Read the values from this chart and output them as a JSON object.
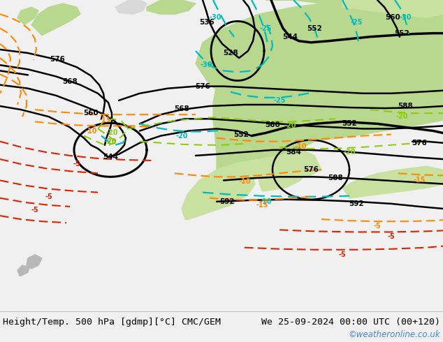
{
  "title_left": "Height/Temp. 500 hPa [gdmp][°C] CMC/GEM",
  "title_right": "We 25-09-2024 00:00 UTC (00+120)",
  "watermark": "©weatheronline.co.uk",
  "bg_color": "#c8c8c8",
  "land_green": "#b8d898",
  "land_green_light": "#d0e8b0",
  "land_green_bright": "#c8e0a0",
  "ocean_gray": "#c0c0c0",
  "title_fontsize": 9.5,
  "watermark_color": "#4488cc",
  "bottom_bar_color": "#f0f0f0",
  "fig_width": 6.34,
  "fig_height": 4.9
}
